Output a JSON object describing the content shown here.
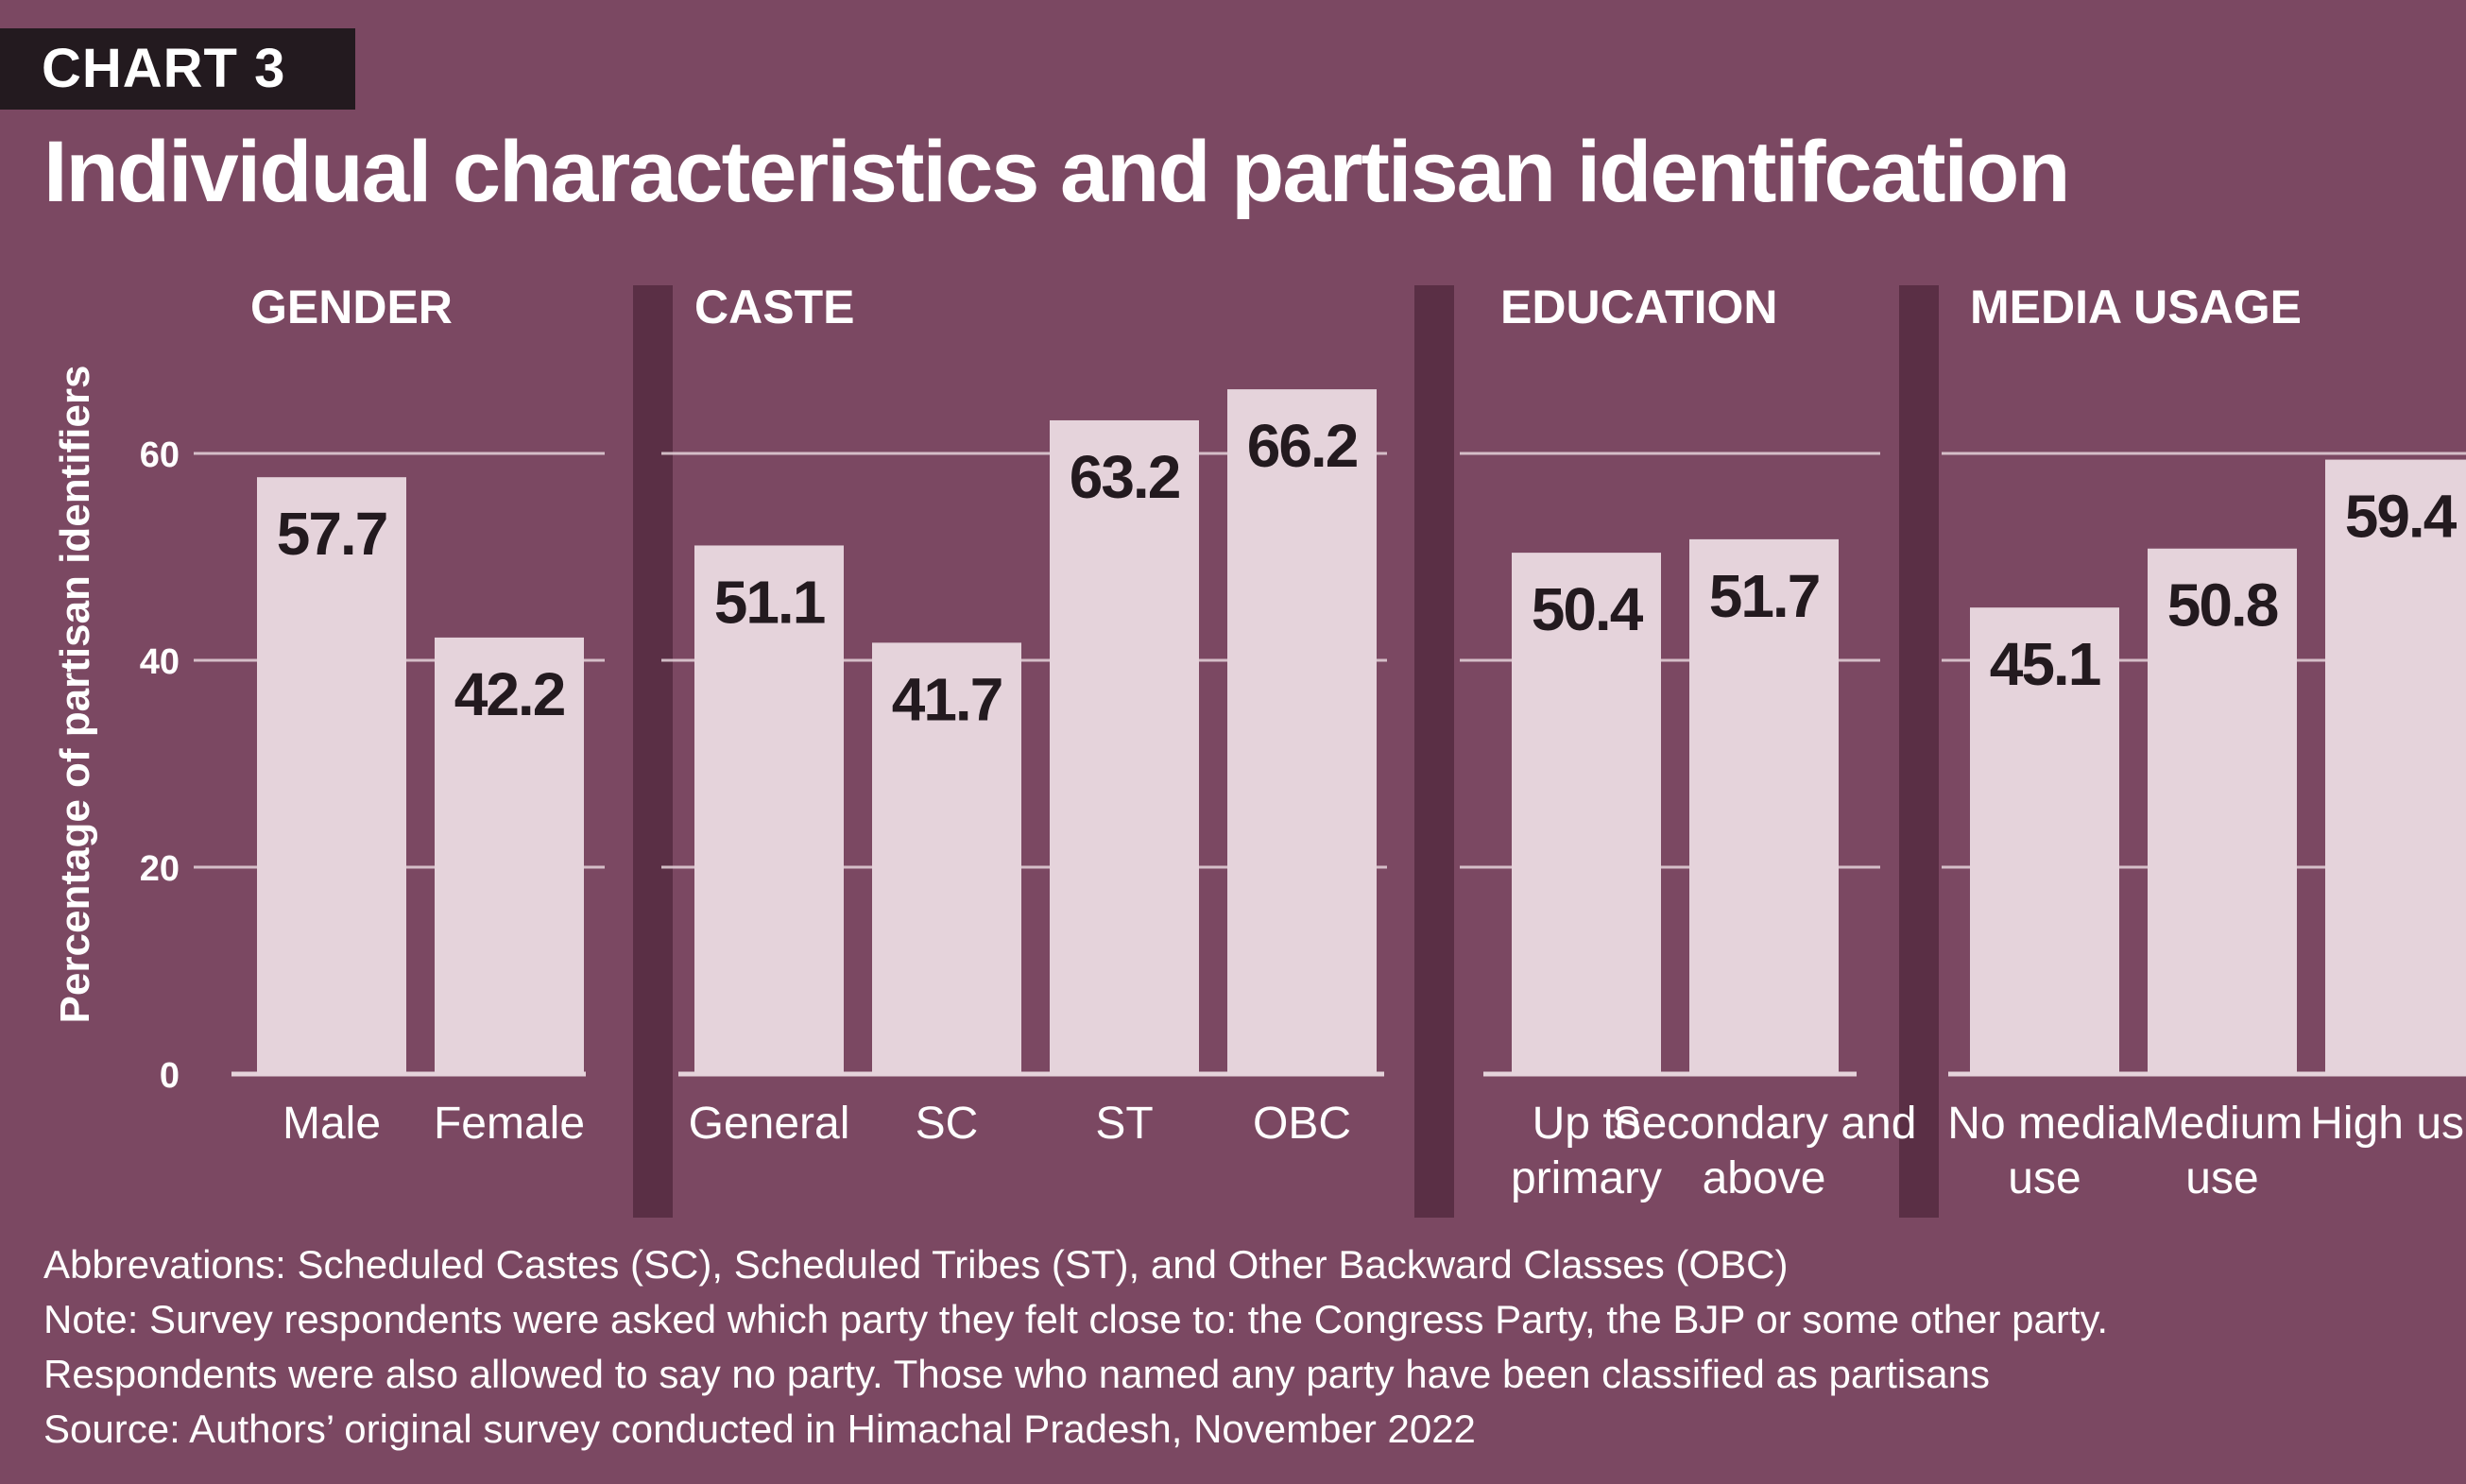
{
  "header": {
    "badge": "CHART 3",
    "title": "Individual characteristics and partisan identifcation"
  },
  "colors": {
    "background": "#7b4862",
    "bar": "#e5d3db",
    "divider": "#5a2f45",
    "badge": "#231a1f",
    "text": "#ffffff",
    "label_text": "#231a1f"
  },
  "chart_data": {
    "type": "bar",
    "ylabel": "Percentage of partisan identifiers",
    "ylim": [
      0,
      70
    ],
    "yticks": [
      0,
      20,
      40,
      60
    ],
    "grid": true,
    "panels": [
      {
        "title": "GENDER",
        "categories": [
          "Male",
          "Female"
        ],
        "values": [
          57.7,
          42.2
        ]
      },
      {
        "title": "CASTE",
        "categories": [
          "General",
          "SC",
          "ST",
          "OBC"
        ],
        "values": [
          51.1,
          41.7,
          63.2,
          66.2
        ]
      },
      {
        "title": "EDUCATION",
        "categories": [
          "Up to primary",
          "Secondary and above"
        ],
        "values": [
          50.4,
          51.7
        ]
      },
      {
        "title": "MEDIA USAGE",
        "categories": [
          "No media use",
          "Medium use",
          "High use"
        ],
        "values": [
          45.1,
          50.8,
          59.4
        ]
      }
    ]
  },
  "notes": {
    "abbreviations": "Abbrevations: Scheduled Castes (SC), Scheduled Tribes (ST), and Other Backward Classes (OBC)",
    "note_line1": "Note: Survey respondents were asked which party they felt close to: the Congress Party, the BJP or some other party.",
    "note_line2": "Respondents were also allowed to say no party. Those who named any party have been classified as partisans",
    "source": "Source: Authors’ original survey conducted in Himachal Pradesh, November 2022"
  }
}
